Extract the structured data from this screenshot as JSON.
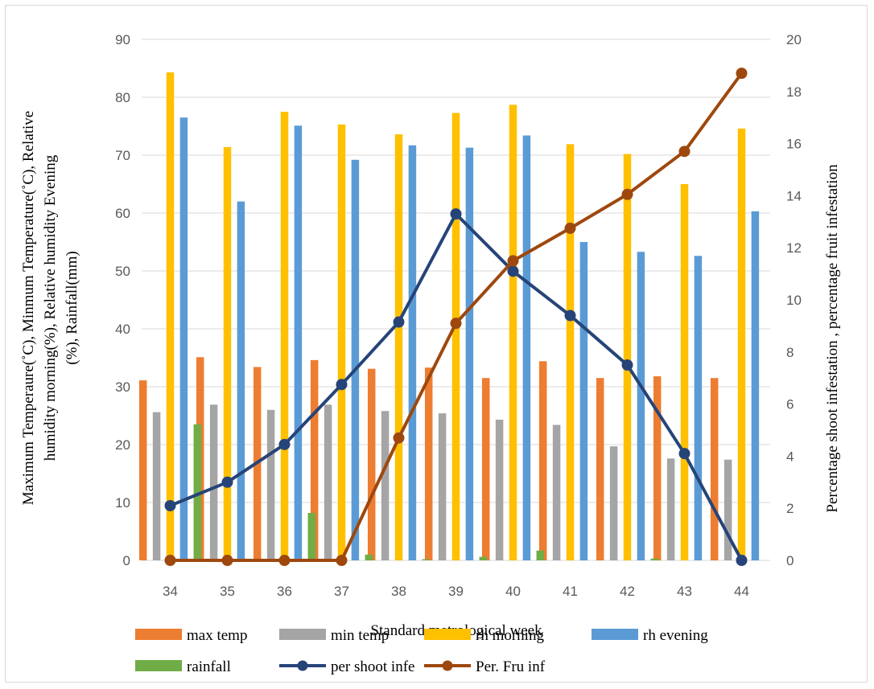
{
  "chart_data": {
    "type": "bar",
    "title": "",
    "xlabel": "Standard metrological week",
    "ylabel": "Maximum Temperaure(˚C), Minmum Temperature(˚C), Relative humidity  morning(%), Relative humidity Evening (%), Rainfall(mm)",
    "ylabel_lines": [
      "Maximum Temperaure(˚C), Minmum Temperature(˚C), Relative",
      "humidity  morning(%), Relative humidity Evening",
      "(%), Rainfall(mm)"
    ],
    "y2label": "Percentage shoot infestation , percentage fruit infestation",
    "ylim": [
      0,
      90
    ],
    "yticks": [
      0,
      10,
      20,
      30,
      40,
      50,
      60,
      70,
      80,
      90
    ],
    "y2lim": [
      0,
      20
    ],
    "y2ticks": [
      0,
      2,
      4,
      6,
      8,
      10,
      12,
      14,
      16,
      18,
      20
    ],
    "categories": [
      "34",
      "35",
      "36",
      "37",
      "38",
      "39",
      "40",
      "41",
      "42",
      "43",
      "44"
    ],
    "grid": true,
    "legend_position": "bottom",
    "bar_series": [
      {
        "name": "max temp",
        "color": "#ED7D31",
        "values": [
          31.1,
          35.1,
          33.4,
          34.6,
          33.1,
          33.3,
          31.5,
          34.4,
          31.5,
          31.8,
          31.5
        ]
      },
      {
        "name": "min temp",
        "color": "#A5A5A5",
        "values": [
          25.6,
          26.9,
          26.0,
          26.9,
          25.8,
          25.4,
          24.3,
          23.4,
          19.7,
          17.6,
          17.4
        ]
      },
      {
        "name": "rh morning",
        "color": "#FFC000",
        "values": [
          84.3,
          71.4,
          77.5,
          75.3,
          73.6,
          77.3,
          78.7,
          71.9,
          70.2,
          65.0,
          74.6
        ]
      },
      {
        "name": "rh evening",
        "color": "#5B9BD5",
        "values": [
          76.5,
          62.0,
          75.1,
          69.2,
          71.7,
          71.3,
          73.4,
          55.0,
          53.3,
          52.6,
          60.3
        ]
      },
      {
        "name": "rainfall",
        "color": "#70AD47",
        "values": [
          23.5,
          0,
          8.2,
          1.0,
          0.2,
          0.6,
          1.7,
          0,
          0.3,
          0,
          0
        ]
      }
    ],
    "line_series": [
      {
        "name": "per shoot infe",
        "color": "#264478",
        "axis": "right",
        "values": [
          2.1,
          3.0,
          4.45,
          6.75,
          9.15,
          13.3,
          11.1,
          9.4,
          7.5,
          4.1,
          0
        ]
      },
      {
        "name": "Per. Fru inf",
        "color": "#9E480E",
        "axis": "right",
        "values": [
          0,
          0,
          0,
          0,
          4.7,
          9.1,
          11.5,
          12.75,
          14.05,
          15.7,
          18.7
        ]
      }
    ],
    "legend": [
      {
        "name": "max temp",
        "kind": "bar",
        "color": "#ED7D31"
      },
      {
        "name": "min temp",
        "kind": "bar",
        "color": "#A5A5A5"
      },
      {
        "name": "rh morning",
        "kind": "bar",
        "color": "#FFC000"
      },
      {
        "name": "rh evening",
        "kind": "bar",
        "color": "#5B9BD5"
      },
      {
        "name": "rainfall",
        "kind": "bar",
        "color": "#70AD47"
      },
      {
        "name": "per shoot infe",
        "kind": "line",
        "color": "#264478"
      },
      {
        "name": "Per. Fru inf",
        "kind": "line",
        "color": "#9E480E"
      }
    ]
  }
}
